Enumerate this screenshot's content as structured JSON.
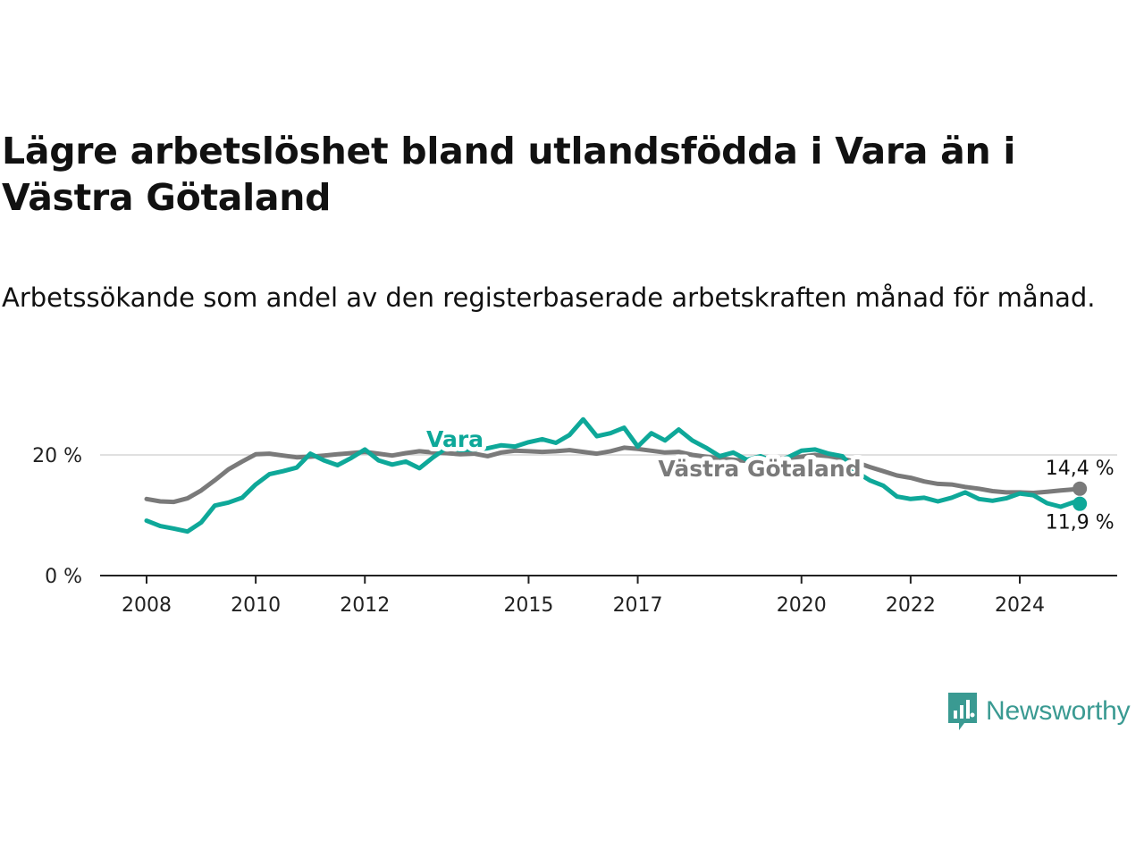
{
  "title": "Lägre arbetslöshet bland utlandsfödda i Vara än i Västra Götaland",
  "subtitle": "Arbetssökande som andel av den registerbaserade arbetskraften månad för månad.",
  "logo": {
    "text": "Newsworthy",
    "icon": "newsworthy-chart-bubble-icon",
    "color": "#3a9a92"
  },
  "chart_data": {
    "type": "line",
    "x_ticks": [
      "2008",
      "2010",
      "2012",
      "2015",
      "2017",
      "2020",
      "2022",
      "2024"
    ],
    "y_ticks": [
      {
        "value": 0,
        "label": "0 %"
      },
      {
        "value": 20,
        "label": "20 %"
      }
    ],
    "ylim": [
      0,
      27
    ],
    "xlim": [
      2007.2,
      2025.8
    ],
    "grid": "horizontal",
    "series": [
      {
        "name": "Vara",
        "color": "#0ea899",
        "end_label": "11,9 %",
        "x": [
          2008.0,
          2008.25,
          2008.5,
          2008.75,
          2009.0,
          2009.25,
          2009.5,
          2009.75,
          2010.0,
          2010.25,
          2010.5,
          2010.75,
          2011.0,
          2011.25,
          2011.5,
          2011.75,
          2012.0,
          2012.25,
          2012.5,
          2012.75,
          2013.0,
          2013.25,
          2013.5,
          2013.75,
          2014.0,
          2014.25,
          2014.5,
          2014.75,
          2015.0,
          2015.25,
          2015.5,
          2015.75,
          2016.0,
          2016.25,
          2016.5,
          2016.75,
          2017.0,
          2017.25,
          2017.5,
          2017.75,
          2018.0,
          2018.25,
          2018.5,
          2018.75,
          2019.0,
          2019.25,
          2019.5,
          2019.75,
          2020.0,
          2020.25,
          2020.5,
          2020.75,
          2021.0,
          2021.25,
          2021.5,
          2021.75,
          2022.0,
          2022.25,
          2022.5,
          2022.75,
          2023.0,
          2023.25,
          2023.5,
          2023.75,
          2024.0,
          2024.25,
          2024.5,
          2024.75,
          2025.0,
          2025.1
        ],
        "values": [
          9.1,
          8.2,
          7.8,
          7.3,
          8.8,
          11.6,
          12.1,
          12.9,
          15.1,
          16.8,
          17.3,
          17.9,
          20.2,
          19.1,
          18.3,
          19.5,
          20.9,
          19.1,
          18.4,
          18.9,
          17.8,
          19.6,
          21.2,
          20.8,
          20.9,
          21.1,
          21.6,
          21.4,
          22.1,
          22.6,
          22.0,
          23.3,
          25.9,
          23.1,
          23.6,
          24.5,
          21.4,
          23.6,
          22.4,
          24.2,
          22.4,
          21.2,
          19.8,
          20.4,
          19.2,
          19.8,
          18.9,
          19.6,
          20.7,
          20.9,
          20.2,
          19.8,
          17.2,
          15.8,
          14.9,
          13.1,
          12.7,
          12.9,
          12.3,
          12.9,
          13.8,
          12.7,
          12.4,
          12.8,
          13.6,
          13.3,
          12.0,
          11.4,
          12.2,
          11.9
        ]
      },
      {
        "name": "Västra Götaland",
        "color": "#7a7a7a",
        "end_label": "14,4 %",
        "x": [
          2008.0,
          2008.25,
          2008.5,
          2008.75,
          2009.0,
          2009.25,
          2009.5,
          2009.75,
          2010.0,
          2010.25,
          2010.5,
          2010.75,
          2011.0,
          2011.25,
          2011.5,
          2011.75,
          2012.0,
          2012.25,
          2012.5,
          2012.75,
          2013.0,
          2013.25,
          2013.5,
          2013.75,
          2014.0,
          2014.25,
          2014.5,
          2014.75,
          2015.0,
          2015.25,
          2015.5,
          2015.75,
          2016.0,
          2016.25,
          2016.5,
          2016.75,
          2017.0,
          2017.25,
          2017.5,
          2017.75,
          2018.0,
          2018.25,
          2018.5,
          2018.75,
          2019.0,
          2019.25,
          2019.5,
          2019.75,
          2020.0,
          2020.25,
          2020.5,
          2020.75,
          2021.0,
          2021.25,
          2021.5,
          2021.75,
          2022.0,
          2022.25,
          2022.5,
          2022.75,
          2023.0,
          2023.25,
          2023.5,
          2023.75,
          2024.0,
          2024.25,
          2024.5,
          2024.75,
          2025.0,
          2025.1
        ],
        "values": [
          12.7,
          12.3,
          12.2,
          12.8,
          14.1,
          15.8,
          17.6,
          18.9,
          20.1,
          20.2,
          19.9,
          19.6,
          19.7,
          19.9,
          20.1,
          20.3,
          20.5,
          20.2,
          19.9,
          20.3,
          20.6,
          20.4,
          20.3,
          20.1,
          20.2,
          19.8,
          20.4,
          20.7,
          20.6,
          20.5,
          20.6,
          20.8,
          20.5,
          20.2,
          20.6,
          21.2,
          21.0,
          20.7,
          20.4,
          20.5,
          20.0,
          19.7,
          19.4,
          19.2,
          19.0,
          19.1,
          19.3,
          19.5,
          19.7,
          20.0,
          19.8,
          19.4,
          18.8,
          18.0,
          17.3,
          16.6,
          16.2,
          15.6,
          15.2,
          15.1,
          14.7,
          14.4,
          14.0,
          13.8,
          13.8,
          13.7,
          13.9,
          14.1,
          14.3,
          14.4
        ]
      }
    ]
  }
}
